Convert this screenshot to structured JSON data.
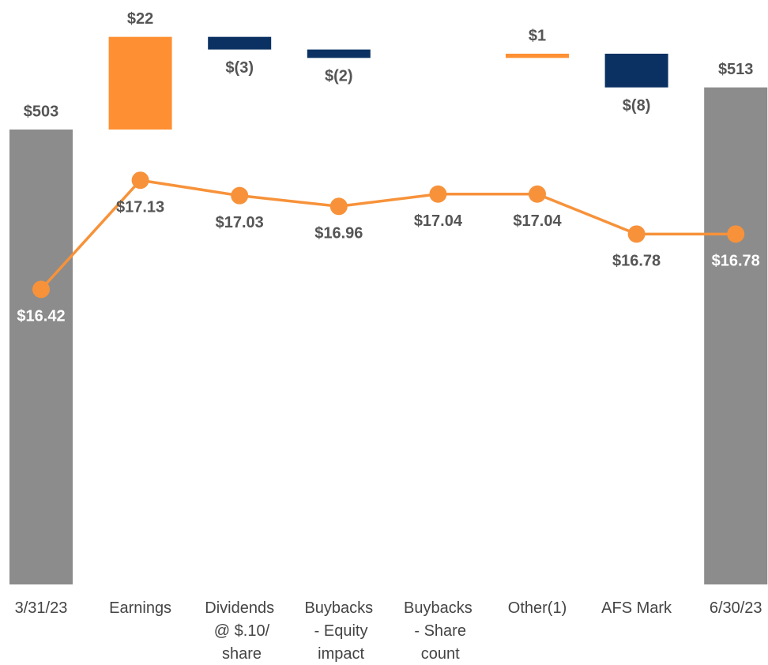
{
  "chart_data": {
    "type": "waterfall",
    "categories": [
      "3/31/23",
      "Earnings",
      "Dividends @ $.10/ share",
      "Buybacks - Equity impact",
      "Buybacks - Share count",
      "Other(1)",
      "AFS Mark",
      "6/30/23"
    ],
    "series": [
      {
        "type": "waterfall",
        "colors": {
          "total": "#8c8c8c",
          "increase": "#ff8f33",
          "decrease": "#0a3161"
        },
        "values": [
          503,
          22,
          -3,
          -2,
          null,
          1,
          -8,
          513
        ],
        "value_labels": [
          "$503",
          "$22",
          "$(3)",
          "$(2)",
          null,
          "$1",
          "$(8)",
          "$513"
        ]
      },
      {
        "type": "line",
        "axis": "y2",
        "color": "#f7923a",
        "values": [
          16.42,
          17.13,
          17.03,
          16.96,
          17.04,
          17.04,
          16.78,
          16.78
        ],
        "value_labels": [
          "$16.42",
          "$17.13",
          "$17.03",
          "$16.96",
          "$17.04",
          "$17.04",
          "$16.78",
          "$16.78"
        ]
      }
    ],
    "ylim": [
      395,
      530
    ],
    "y2lim": [
      14.5,
      18.2
    ]
  }
}
